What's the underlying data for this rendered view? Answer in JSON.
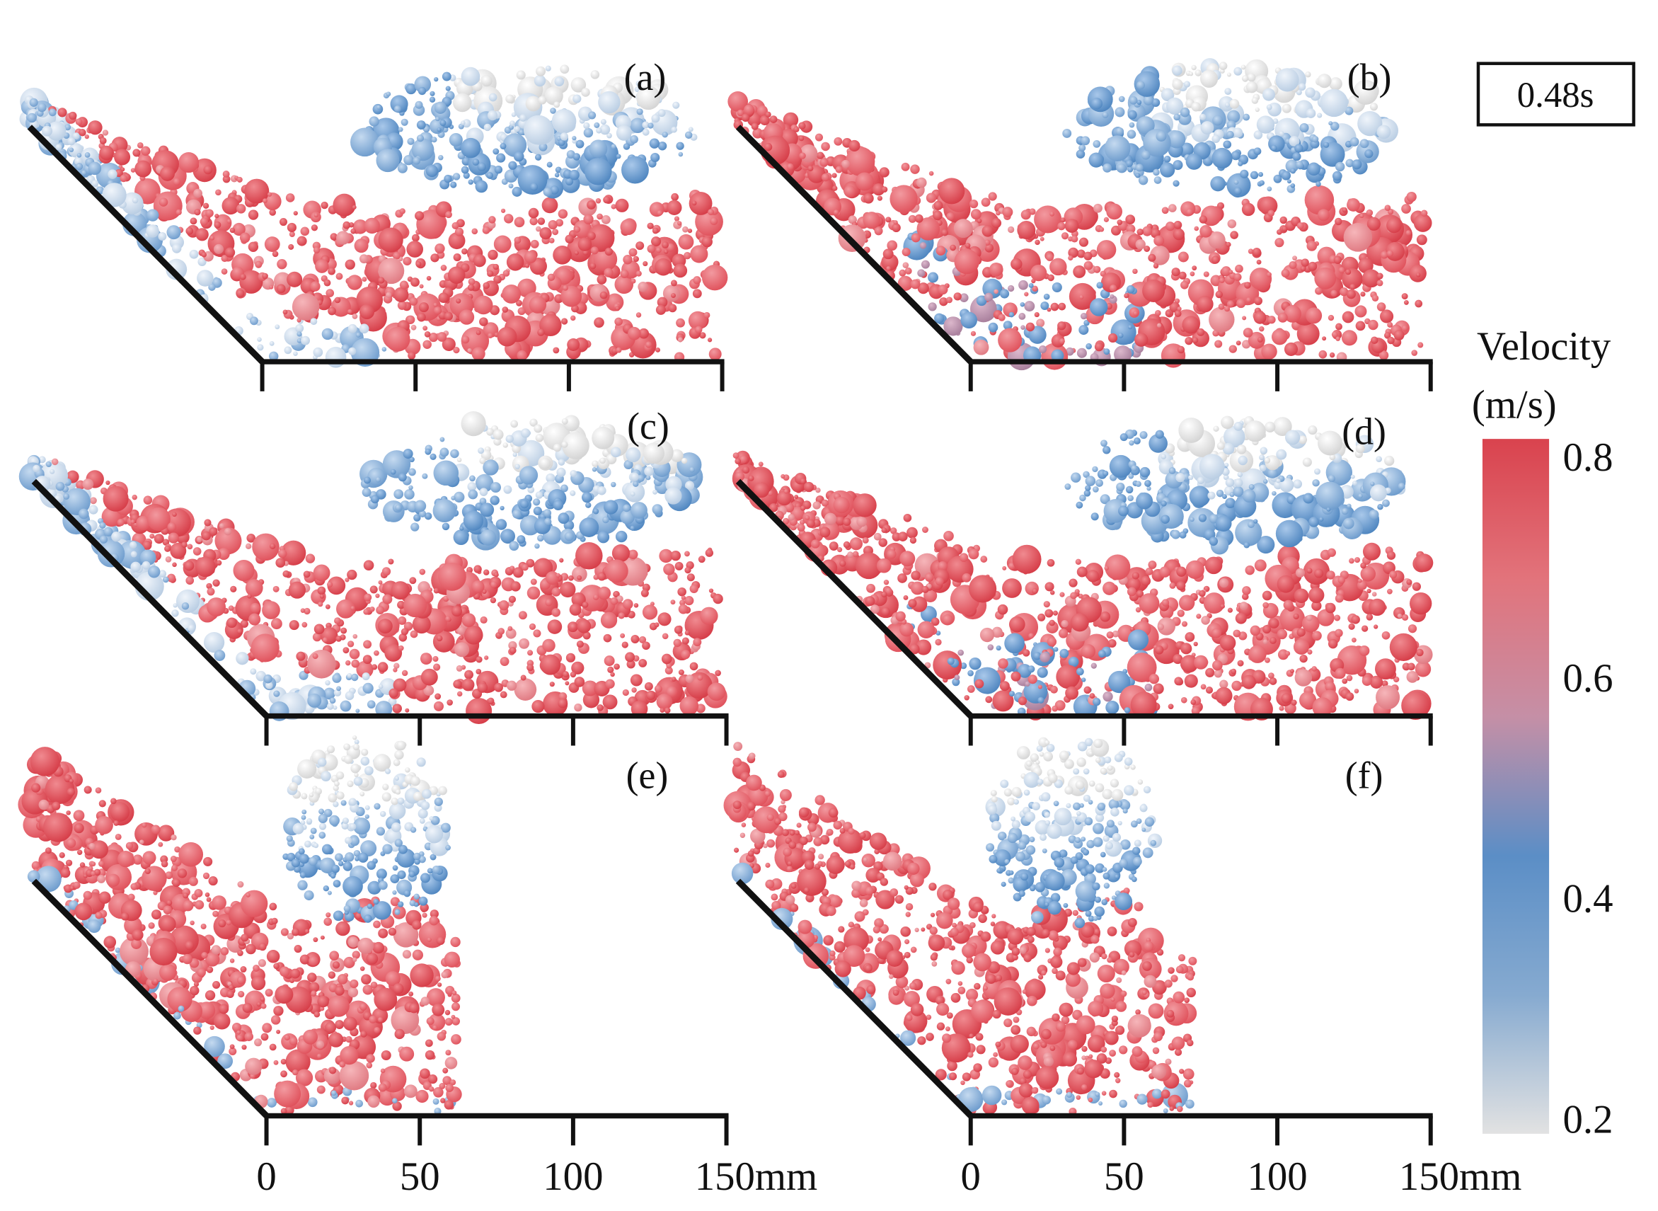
{
  "time_label": "0.48s",
  "panels": [
    {
      "label": "(a)"
    },
    {
      "label": "(b)"
    },
    {
      "label": "(c)"
    },
    {
      "label": "(d)"
    },
    {
      "label": "(e)"
    },
    {
      "label": "(f)"
    }
  ],
  "x_axis": {
    "xlim": [
      0,
      150
    ],
    "xticks": [
      0,
      50,
      100,
      {
        "value": 150,
        "label": "150mm"
      }
    ]
  },
  "colorbar": {
    "title": [
      "Velocity",
      "(m/s)"
    ],
    "lim": [
      0.2,
      0.8
    ],
    "ticks": [
      0.2,
      0.4,
      0.6,
      0.8
    ],
    "colors": [
      "#e2e2e2",
      "#86aad0",
      "#5b8ec6",
      "#c58fa6",
      "#e2737b",
      "#d9434e"
    ]
  }
}
